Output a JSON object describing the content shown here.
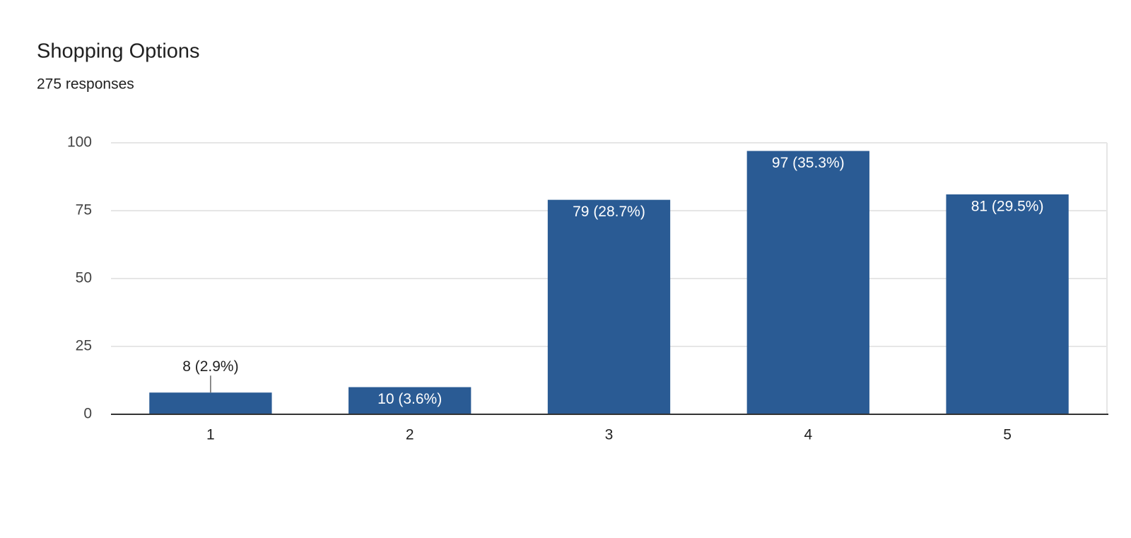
{
  "chart_data": {
    "type": "bar",
    "title": "Shopping Options",
    "subtitle": "275 responses",
    "categories": [
      "1",
      "2",
      "3",
      "4",
      "5"
    ],
    "values": [
      8,
      10,
      79,
      97,
      81
    ],
    "value_labels": [
      "8 (2.9%)",
      "10 (3.6%)",
      "79 (28.7%)",
      "97 (35.3%)",
      "81 (29.5%)"
    ],
    "color": "#2a5b94",
    "ylim": [
      0,
      100
    ],
    "yticks": [
      0,
      25,
      50,
      75,
      100
    ],
    "grid": true
  }
}
